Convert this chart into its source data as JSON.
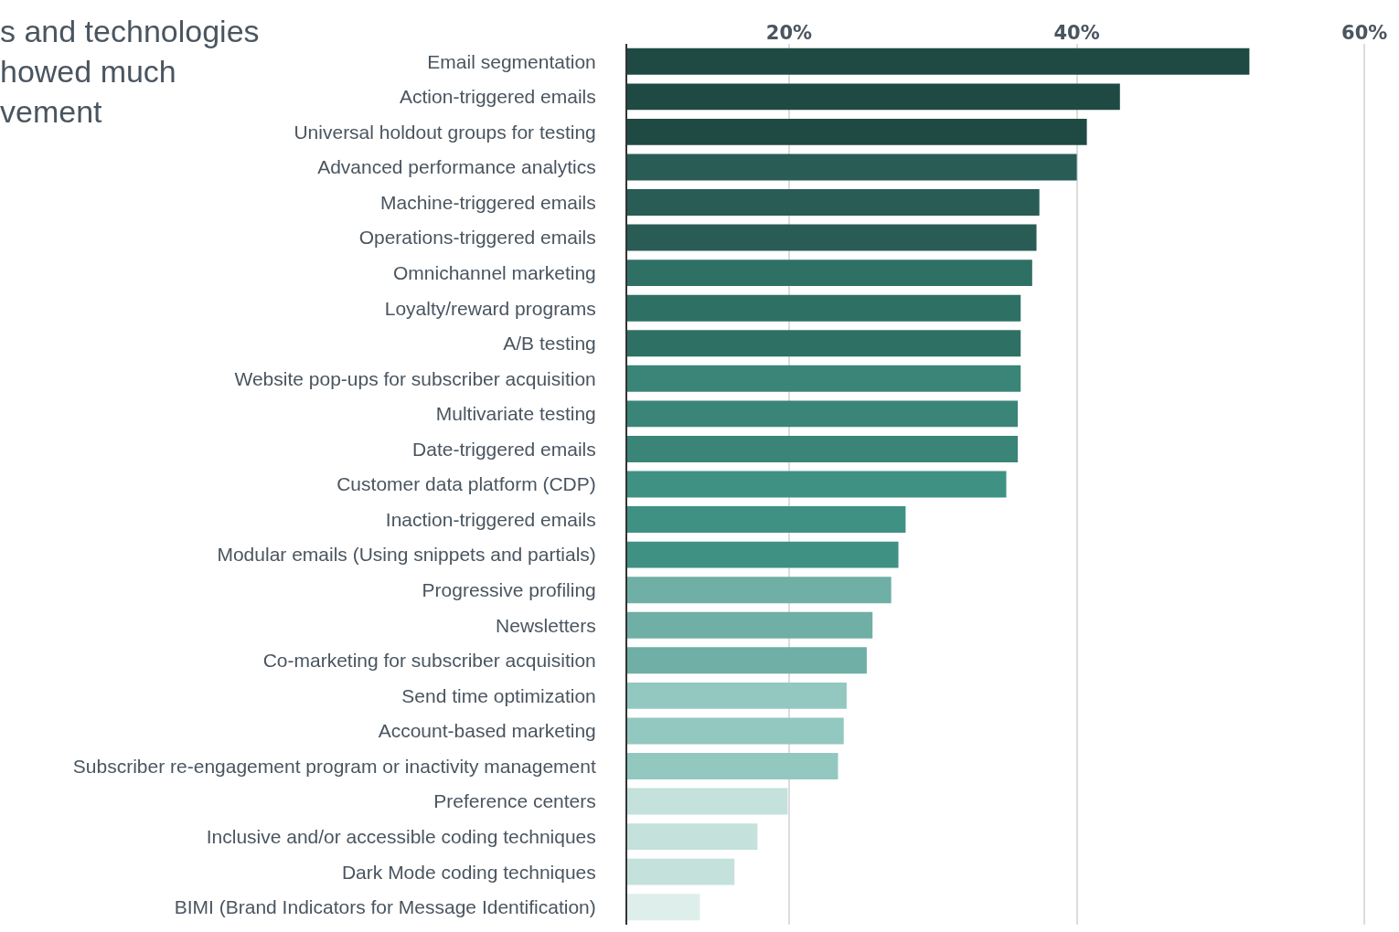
{
  "chart_data": {
    "type": "bar",
    "orientation": "horizontal",
    "title": "s and technologies\nhowed much\nvement",
    "categories": [
      "Email segmentation",
      "Action-triggered emails",
      "Universal holdout groups for testing",
      "Advanced performance analytics",
      "Machine-triggered emails",
      "Operations-triggered emails",
      "Omnichannel marketing",
      "Loyalty/reward programs",
      "A/B testing",
      "Website pop-ups for subscriber acquisition",
      "Multivariate testing",
      "Date-triggered emails",
      "Customer data platform (CDP)",
      "Inaction-triggered emails",
      "Modular emails (Using snippets and partials)",
      "Progressive profiling",
      "Newsletters",
      "Co-marketing for subscriber acquisition",
      "Send time optimization",
      "Account-based marketing",
      "Subscriber re-engagement program or inactivity management",
      "Preference centers",
      "Inclusive and/or accessible coding techniques",
      "Dark Mode coding techniques",
      "BIMI (Brand Indicators for Message Identification)"
    ],
    "values": [
      52.0,
      43.0,
      40.7,
      40.0,
      37.4,
      37.2,
      36.9,
      36.1,
      36.1,
      36.1,
      35.9,
      35.9,
      35.1,
      28.1,
      27.6,
      27.1,
      25.8,
      25.4,
      24.0,
      23.8,
      23.4,
      19.9,
      17.8,
      16.2,
      13.8
    ],
    "colors": [
      "#1f4a43",
      "#1f4a43",
      "#1f4a43",
      "#285c55",
      "#285c55",
      "#285c55",
      "#2f7065",
      "#2f7065",
      "#2f7065",
      "#3a8577",
      "#3a8577",
      "#3a8577",
      "#3f9184",
      "#3f9184",
      "#3f9184",
      "#6fafa5",
      "#6fafa5",
      "#6fafa5",
      "#92c8c0",
      "#92c8c0",
      "#92c8c0",
      "#c4e1db",
      "#c4e1db",
      "#c4e1db",
      "#deeeeb"
    ],
    "xlim": [
      8.75,
      62.4
    ],
    "xticks": [
      {
        "value": 20,
        "label": "20%"
      },
      {
        "value": 40,
        "label": "40%"
      },
      {
        "value": 60,
        "label": "60%"
      }
    ],
    "grid": "x",
    "tick_labels": "xy"
  }
}
